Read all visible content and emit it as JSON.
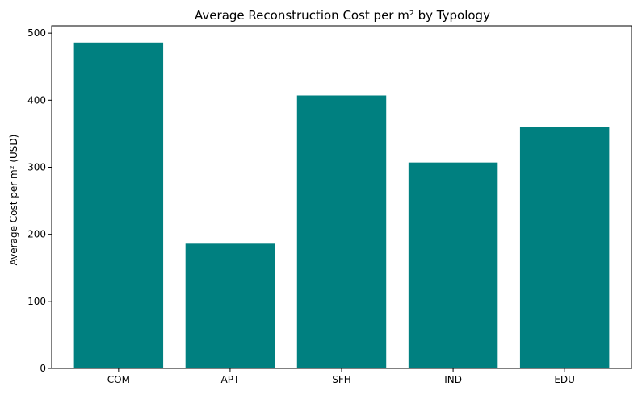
{
  "chart_data": {
    "type": "bar",
    "title": "Average Reconstruction Cost per m² by Typology",
    "xlabel": "",
    "ylabel": "Average Cost per m² (USD)",
    "categories": [
      "COM",
      "APT",
      "SFH",
      "IND",
      "EDU"
    ],
    "values": [
      486,
      186,
      407,
      307,
      360
    ],
    "ylim": [
      0,
      511
    ],
    "yticks": [
      0,
      100,
      200,
      300,
      400,
      500
    ],
    "bar_color": "#008080",
    "grid": false,
    "legend": "none"
  }
}
